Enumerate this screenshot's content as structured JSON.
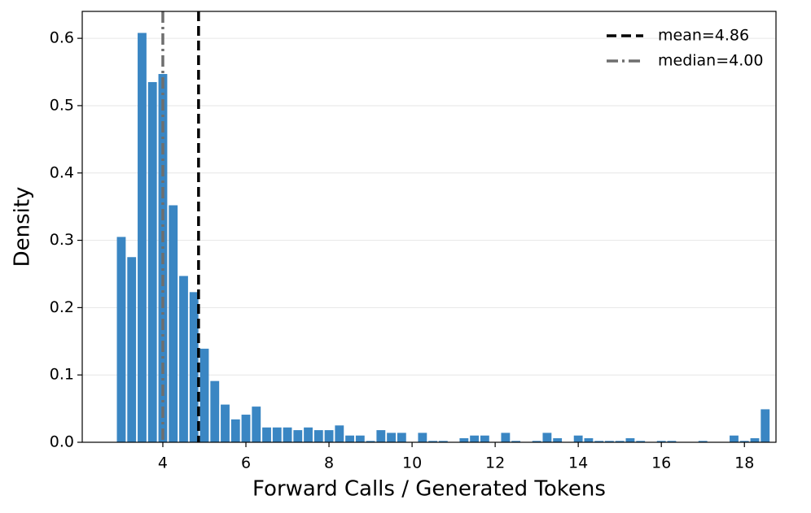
{
  "chart_data": {
    "type": "histogram",
    "xlabel": "Forward Calls / Generated Tokens",
    "ylabel": "Density",
    "bins": [
      2.875,
      3.125,
      3.375,
      3.625,
      3.875,
      4.125,
      4.375,
      4.625,
      4.875,
      5.125,
      5.375,
      5.625,
      5.875,
      6.125,
      6.375,
      6.625,
      6.875,
      7.125,
      7.375,
      7.625,
      7.875,
      8.125,
      8.375,
      8.625,
      8.875,
      9.125,
      9.375,
      9.625,
      9.875,
      10.125,
      10.375,
      10.625,
      10.875,
      11.125,
      11.375,
      11.625,
      11.875,
      12.125,
      12.375,
      12.625,
      12.875,
      13.125,
      13.375,
      13.625,
      13.875,
      14.125,
      14.375,
      14.625,
      14.875,
      15.125,
      15.375,
      15.625,
      15.875,
      16.125,
      16.375,
      16.625,
      16.875,
      17.125,
      17.375,
      17.625,
      17.875,
      18.125,
      18.375,
      18.625
    ],
    "values": [
      0.305,
      0.275,
      0.608,
      0.535,
      0.547,
      0.352,
      0.247,
      0.223,
      0.139,
      0.091,
      0.056,
      0.034,
      0.041,
      0.053,
      0.022,
      0.022,
      0.022,
      0.018,
      0.022,
      0.018,
      0.018,
      0.025,
      0.01,
      0.01,
      0.002,
      0.018,
      0.014,
      0.014,
      0,
      0.014,
      0.002,
      0.002,
      0,
      0.006,
      0.01,
      0.01,
      0,
      0.014,
      0.002,
      0,
      0.002,
      0.014,
      0.006,
      0,
      0.01,
      0.006,
      0.002,
      0.002,
      0.002,
      0.006,
      0.002,
      0,
      0.002,
      0.002,
      0,
      0,
      0.002,
      0,
      0,
      0.01,
      0.002,
      0.006,
      0.049
    ],
    "color": "#3a86c3",
    "xlim": [
      2.06,
      18.76
    ],
    "ylim": [
      0,
      0.64
    ],
    "xticks": [
      4,
      6,
      8,
      10,
      12,
      14,
      16,
      18
    ],
    "yticks": [
      {
        "value": 0,
        "label": "0.0"
      },
      0.1,
      0.2,
      0.3,
      0.4,
      0.5,
      0.6
    ],
    "grid": true,
    "legend": "upper right",
    "vlines": [
      {
        "name": "mean=4.86",
        "value": 4.86,
        "color": "#000000",
        "style": "dashed"
      },
      {
        "name": "median=4.00",
        "value": 4.0,
        "color": "#6e6e6e",
        "style": "dashdot"
      }
    ]
  }
}
